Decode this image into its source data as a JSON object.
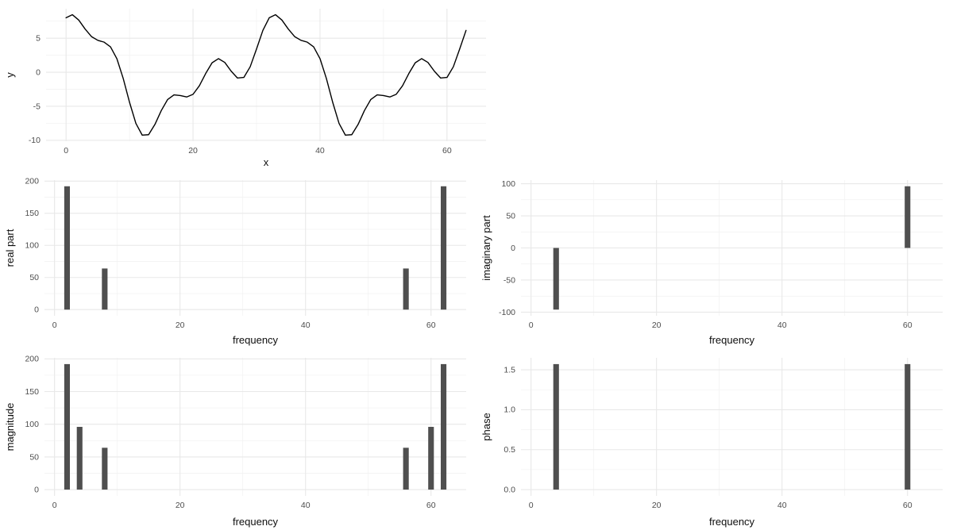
{
  "figure": {
    "background": "#ffffff"
  },
  "theme": {
    "bar_color": "#4f4f4f",
    "line_color": "#000000",
    "grid_major_color": "#e8e8e8",
    "grid_minor_color": "#f1f1f1",
    "tick_label_color": "#4d4d4d",
    "axis_title_color": "#0d0d0d"
  },
  "chart_data": [
    {
      "id": "signal",
      "type": "line",
      "title": "",
      "xlabel": "x",
      "ylabel": "y",
      "x": [
        0,
        1,
        2,
        3,
        4,
        5,
        6,
        7,
        8,
        9,
        10,
        11,
        12,
        13,
        14,
        15,
        16,
        17,
        18,
        19,
        20,
        21,
        22,
        23,
        24,
        25,
        26,
        27,
        28,
        29,
        30,
        31,
        32,
        33,
        34,
        35,
        36,
        37,
        38,
        39,
        40,
        41,
        42,
        43,
        44,
        45,
        46,
        47,
        48,
        49,
        50,
        51,
        52,
        53,
        54,
        55,
        56,
        57,
        58,
        59,
        60,
        61,
        62,
        63
      ],
      "y": [
        8,
        8.45,
        7.66,
        6.35,
        5.24,
        4.69,
        4.42,
        3.73,
        2,
        -0.9,
        -4.42,
        -7.52,
        -9.24,
        -9.17,
        -7.66,
        -5.62,
        -4,
        -3.32,
        -3.42,
        -3.63,
        -3.24,
        -1.98,
        -0.17,
        1.39,
        2,
        1.44,
        0.17,
        -0.85,
        -0.76,
        0.8,
        3.42,
        6.15,
        8,
        8.45,
        7.66,
        6.35,
        5.24,
        4.69,
        4.42,
        3.73,
        2,
        -0.9,
        -4.42,
        -7.52,
        -9.24,
        -9.17,
        -7.66,
        -5.62,
        -4,
        -3.32,
        -3.42,
        -3.63,
        -3.24,
        -1.98,
        -0.17,
        1.39,
        2,
        1.44,
        0.17,
        -0.85,
        -0.76,
        0.8,
        3.42,
        6.15
      ],
      "xlim": [
        -3.15,
        66.15
      ],
      "ylim": [
        -10.13,
        9.33
      ],
      "xticks": [
        0,
        20,
        40,
        60
      ],
      "xtick_labels": [
        "0",
        "20",
        "40",
        "60"
      ],
      "xticks_minor": [
        10,
        30,
        50
      ],
      "yticks": [
        -10,
        -5,
        0,
        5
      ],
      "ytick_labels": [
        "-10",
        "-5",
        "0",
        "5"
      ],
      "yticks_minor": [
        -7.5,
        -2.5,
        2.5,
        7.5
      ],
      "grid": true,
      "legend": "none"
    },
    {
      "id": "real",
      "type": "bar",
      "title": "",
      "xlabel": "frequency",
      "ylabel": "real part",
      "bars": [
        {
          "x": 2,
          "y": 192
        },
        {
          "x": 8,
          "y": 64
        },
        {
          "x": 56,
          "y": 64
        },
        {
          "x": 62,
          "y": 192
        }
      ],
      "bar_width": 0.9,
      "xlim": [
        -1.6,
        65.6
      ],
      "ylim": [
        -9.6,
        201.6
      ],
      "xticks": [
        0,
        20,
        40,
        60
      ],
      "xtick_labels": [
        "0",
        "20",
        "40",
        "60"
      ],
      "xticks_minor": [
        10,
        30,
        50
      ],
      "yticks": [
        0,
        50,
        100,
        150,
        200
      ],
      "ytick_labels": [
        "0",
        "50",
        "100",
        "150",
        "200"
      ],
      "yticks_minor": [
        25,
        75,
        125,
        175
      ],
      "grid": true,
      "legend": "none"
    },
    {
      "id": "imaginary",
      "type": "bar",
      "title": "",
      "xlabel": "frequency",
      "ylabel": "imaginary part",
      "bars": [
        {
          "x": 4,
          "y": -96
        },
        {
          "x": 60,
          "y": 96
        }
      ],
      "bar_width": 0.9,
      "xlim": [
        -1.6,
        65.6
      ],
      "ylim": [
        -105.6,
        105.6
      ],
      "xticks": [
        0,
        20,
        40,
        60
      ],
      "xtick_labels": [
        "0",
        "20",
        "40",
        "60"
      ],
      "xticks_minor": [
        10,
        30,
        50
      ],
      "yticks": [
        -100,
        -50,
        0,
        50,
        100
      ],
      "ytick_labels": [
        "-100",
        "-50",
        "0",
        "50",
        "100"
      ],
      "yticks_minor": [
        -75,
        -25,
        25,
        75
      ],
      "grid": true,
      "legend": "none"
    },
    {
      "id": "magnitude",
      "type": "bar",
      "title": "",
      "xlabel": "frequency",
      "ylabel": "magnitude",
      "bars": [
        {
          "x": 2,
          "y": 192
        },
        {
          "x": 4,
          "y": 96
        },
        {
          "x": 8,
          "y": 64
        },
        {
          "x": 56,
          "y": 64
        },
        {
          "x": 60,
          "y": 96
        },
        {
          "x": 62,
          "y": 192
        }
      ],
      "bar_width": 0.9,
      "xlim": [
        -1.6,
        65.6
      ],
      "ylim": [
        -9.6,
        201.6
      ],
      "xticks": [
        0,
        20,
        40,
        60
      ],
      "xtick_labels": [
        "0",
        "20",
        "40",
        "60"
      ],
      "xticks_minor": [
        10,
        30,
        50
      ],
      "yticks": [
        0,
        50,
        100,
        150,
        200
      ],
      "ytick_labels": [
        "0",
        "50",
        "100",
        "150",
        "200"
      ],
      "yticks_minor": [
        25,
        75,
        125,
        175
      ],
      "grid": true,
      "legend": "none"
    },
    {
      "id": "phase",
      "type": "bar",
      "title": "",
      "xlabel": "frequency",
      "ylabel": "phase",
      "bars": [
        {
          "x": 4,
          "y": 1.5708
        },
        {
          "x": 60,
          "y": 1.5708
        }
      ],
      "bar_width": 0.9,
      "xlim": [
        -1.6,
        65.6
      ],
      "ylim": [
        -0.0785,
        1.6493
      ],
      "xticks": [
        0,
        20,
        40,
        60
      ],
      "xtick_labels": [
        "0",
        "20",
        "40",
        "60"
      ],
      "xticks_minor": [
        10,
        30,
        50
      ],
      "yticks": [
        0,
        0.5,
        1,
        1.5
      ],
      "ytick_labels": [
        "0.0",
        "0.5",
        "1.0",
        "1.5"
      ],
      "yticks_minor": [
        0.25,
        0.75,
        1.25
      ],
      "grid": true,
      "legend": "none"
    }
  ]
}
